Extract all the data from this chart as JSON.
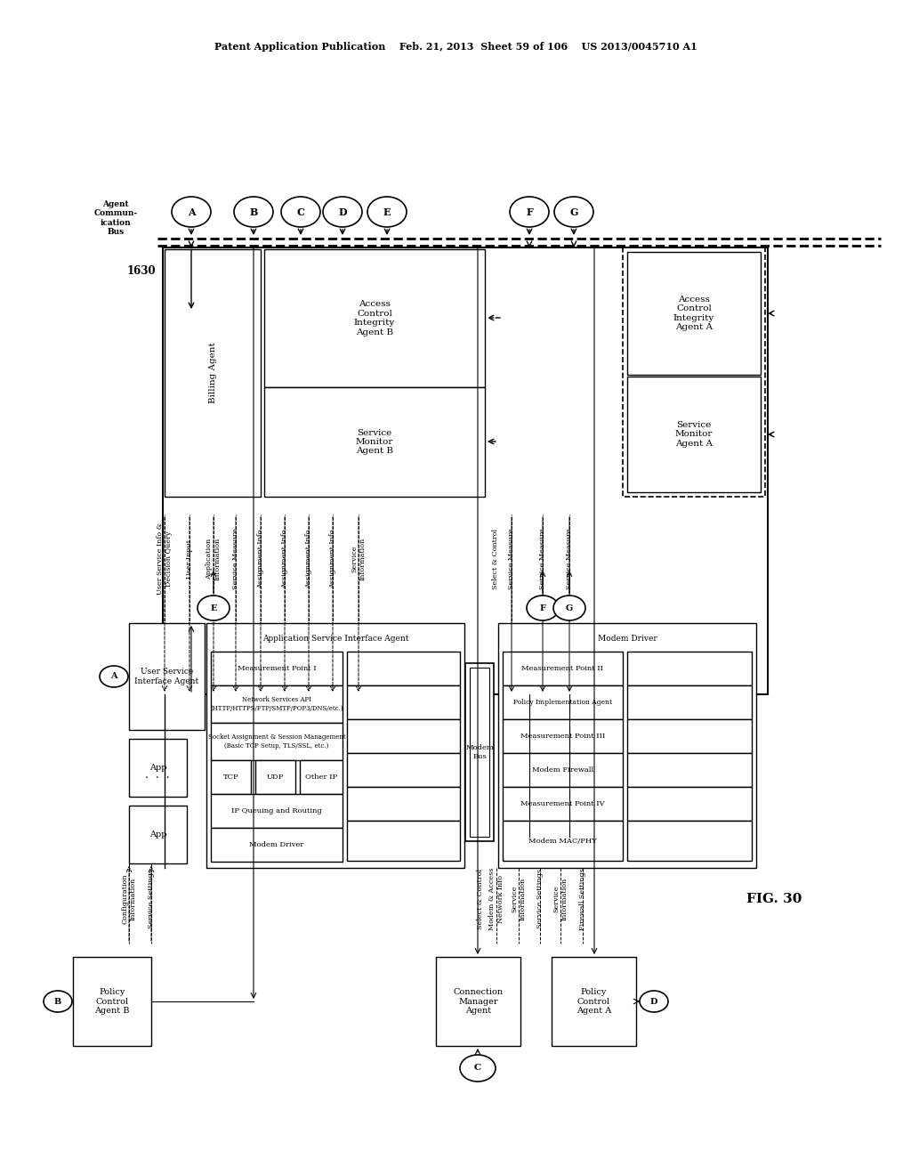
{
  "bg_color": "#ffffff",
  "header_text": "Patent Application Publication    Feb. 21, 2013  Sheet 59 of 106    US 2013/0045710 A1",
  "fig_label": "FIG. 30",
  "label_1630": "1630"
}
